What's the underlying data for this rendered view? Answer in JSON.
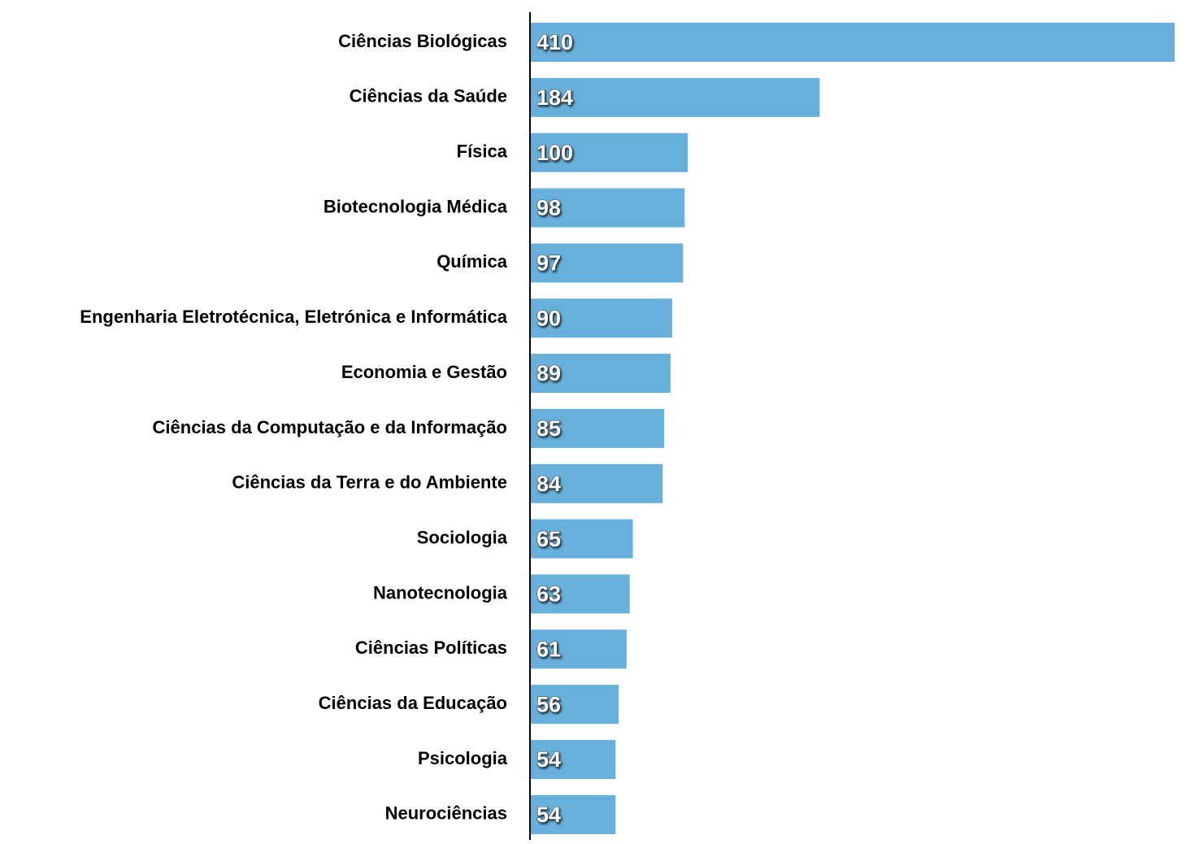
{
  "chart_data": {
    "type": "bar",
    "orientation": "horizontal",
    "categories": [
      "Ciências Biológicas",
      "Ciências da Saúde",
      "Física",
      "Biotecnologia Médica",
      "Química",
      "Engenharia Eletrotécnica, Eletrónica e Informática",
      "Economia e Gestão",
      "Ciências da Computação e da Informação",
      "Ciências da Terra e do Ambiente",
      "Sociologia",
      "Nanotecnologia",
      "Ciências Políticas",
      "Ciências da Educação",
      "Psicologia",
      "Neurociências"
    ],
    "values": [
      410,
      184,
      100,
      98,
      97,
      90,
      89,
      85,
      84,
      65,
      63,
      61,
      56,
      54,
      54
    ],
    "color": "#68b0dc"
  }
}
